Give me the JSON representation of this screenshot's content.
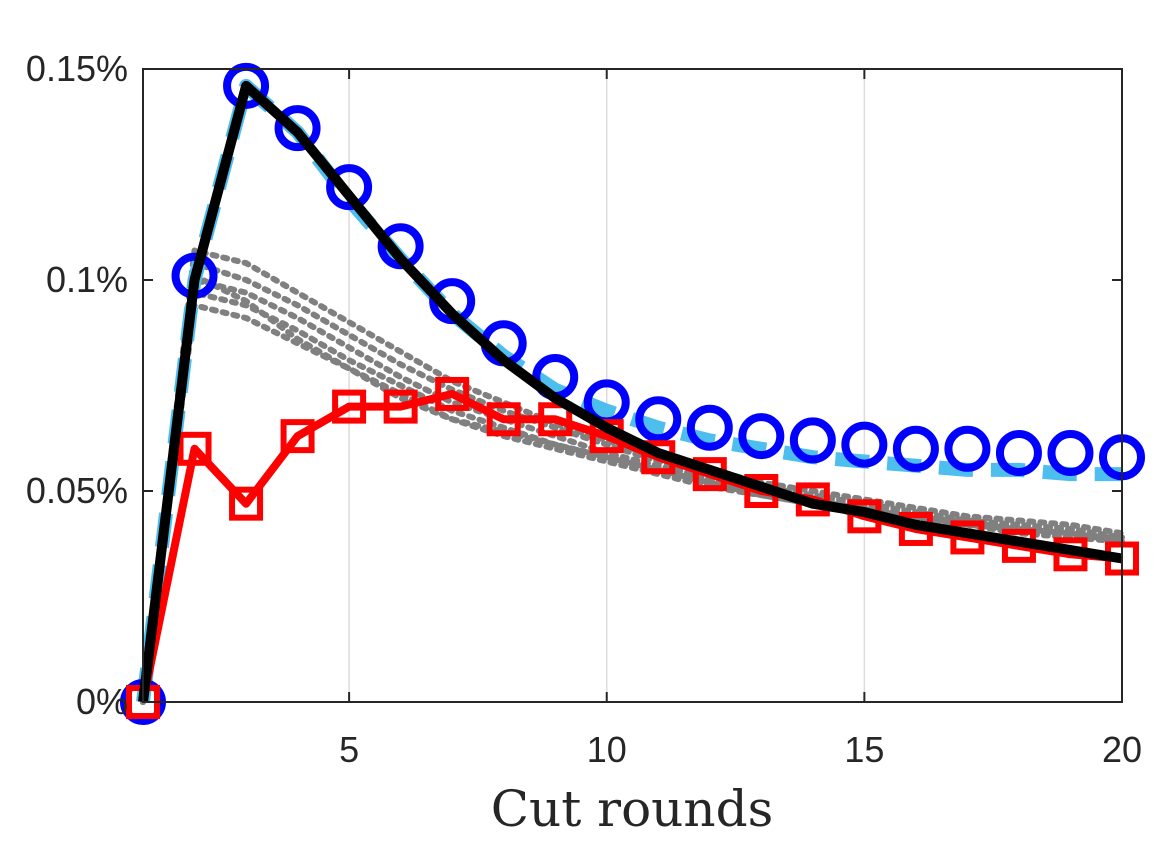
{
  "chart_data": {
    "type": "line",
    "title": "",
    "xlabel": "Cut rounds",
    "ylabel": "",
    "xlim": [
      1,
      20
    ],
    "ylim": [
      0,
      0.15
    ],
    "x_ticks": [
      5,
      10,
      15,
      20
    ],
    "x_tick_labels": [
      "5",
      "10",
      "15",
      "20"
    ],
    "y_ticks": [
      0,
      0.05,
      0.1,
      0.15
    ],
    "y_tick_labels": [
      "0%",
      "0.05%",
      "0.1%",
      "0.15%"
    ],
    "grid": "vertical",
    "x": [
      1,
      2,
      3,
      4,
      5,
      6,
      7,
      8,
      9,
      10,
      11,
      12,
      13,
      14,
      15,
      16,
      17,
      18,
      19,
      20
    ],
    "series": [
      {
        "color": "#808080",
        "style": "dotted",
        "marker": "none",
        "group": "gray-bundle",
        "values": [
          0,
          0.107,
          0.104,
          0.097,
          0.09,
          0.083,
          0.076,
          0.071,
          0.066,
          0.062,
          0.058,
          0.055,
          0.052,
          0.05,
          0.048,
          0.046,
          0.044,
          0.043,
          0.042,
          0.04
        ]
      },
      {
        "color": "#808080",
        "style": "dotted",
        "marker": "none",
        "group": "gray-bundle",
        "values": [
          0,
          0.104,
          0.1,
          0.094,
          0.087,
          0.08,
          0.074,
          0.069,
          0.065,
          0.061,
          0.057,
          0.054,
          0.051,
          0.049,
          0.047,
          0.045,
          0.043,
          0.042,
          0.041,
          0.039
        ]
      },
      {
        "color": "#808080",
        "style": "dotted",
        "marker": "none",
        "group": "gray-bundle",
        "values": [
          0,
          0.1,
          0.097,
          0.091,
          0.084,
          0.077,
          0.071,
          0.067,
          0.063,
          0.059,
          0.056,
          0.053,
          0.05,
          0.048,
          0.046,
          0.044,
          0.043,
          0.041,
          0.04,
          0.039
        ]
      },
      {
        "color": "#808080",
        "style": "dotted",
        "marker": "none",
        "group": "gray-bundle",
        "values": [
          0,
          0.097,
          0.094,
          0.088,
          0.081,
          0.075,
          0.069,
          0.065,
          0.061,
          0.058,
          0.055,
          0.052,
          0.049,
          0.047,
          0.045,
          0.044,
          0.042,
          0.041,
          0.04,
          0.038
        ]
      },
      {
        "color": "#808080",
        "style": "dotted",
        "marker": "none",
        "group": "gray-bundle",
        "values": [
          0,
          0.094,
          0.091,
          0.085,
          0.079,
          0.073,
          0.067,
          0.063,
          0.06,
          0.057,
          0.054,
          0.051,
          0.049,
          0.047,
          0.045,
          0.043,
          0.042,
          0.04,
          0.039,
          0.038
        ]
      },
      {
        "color": "#808080",
        "style": "dotted",
        "marker": "none",
        "group": "gray-bundle",
        "values": [
          0,
          0.101,
          0.095,
          0.086,
          0.079,
          0.072,
          0.067,
          0.064,
          0.061,
          0.058,
          0.055,
          0.052,
          0.05,
          0.048,
          0.046,
          0.044,
          0.043,
          0.041,
          0.04,
          0.039
        ]
      },
      {
        "color": "#4DBEEE",
        "style": "dashed",
        "marker": "none",
        "values": [
          0,
          0.1,
          0.146,
          0.135,
          0.119,
          0.105,
          0.092,
          0.082,
          0.074,
          0.069,
          0.065,
          0.062,
          0.06,
          0.058,
          0.057,
          0.056,
          0.055,
          0.055,
          0.054,
          0.054
        ]
      },
      {
        "color": "#0000FF",
        "style": "none",
        "marker": "circle",
        "values": [
          0,
          0.101,
          0.146,
          0.136,
          0.122,
          0.108,
          0.095,
          0.085,
          0.077,
          0.071,
          0.067,
          0.065,
          0.063,
          0.062,
          0.061,
          0.06,
          0.06,
          0.059,
          0.059,
          0.058
        ]
      },
      {
        "color": "#FF0000",
        "style": "solid",
        "marker": "square",
        "values": [
          0,
          0.06,
          0.047,
          0.063,
          0.07,
          0.07,
          0.073,
          0.067,
          0.067,
          0.063,
          0.058,
          0.054,
          0.05,
          0.048,
          0.044,
          0.041,
          0.039,
          0.037,
          0.035,
          0.034
        ]
      },
      {
        "color": "#000000",
        "style": "solid",
        "marker": "none",
        "values": [
          0,
          0.1,
          0.146,
          0.135,
          0.12,
          0.105,
          0.092,
          0.081,
          0.072,
          0.065,
          0.059,
          0.055,
          0.051,
          0.047,
          0.045,
          0.042,
          0.04,
          0.038,
          0.036,
          0.034
        ]
      }
    ]
  }
}
